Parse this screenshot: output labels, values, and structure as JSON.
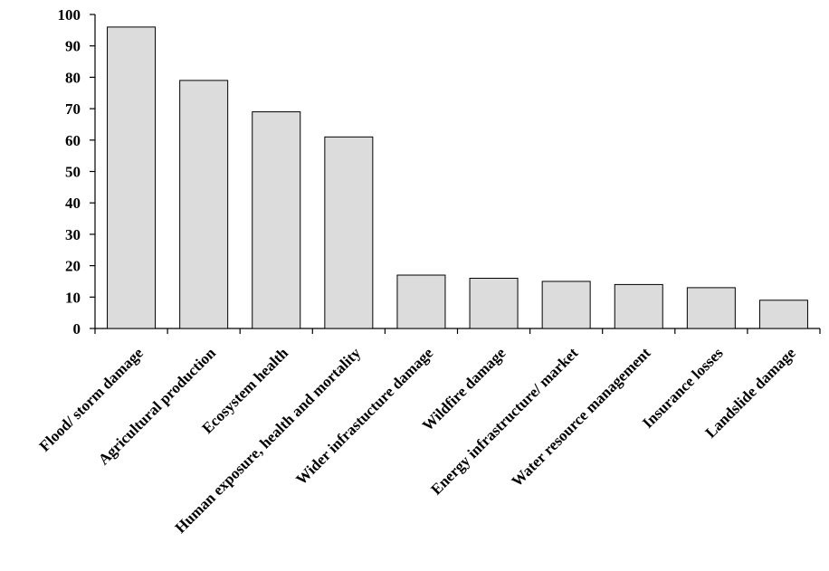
{
  "chart_data": {
    "type": "bar",
    "categories": [
      "Flood/ storm damage",
      "Agricultural production",
      "Ecosystem health",
      "Human exposure, health and mortality",
      "Wider infrastucture damage",
      "Wildfire damage",
      "Energy infrastructure/ market",
      "Water resource management",
      "Insurance losses",
      "Landslide damage"
    ],
    "values": [
      96,
      79,
      69,
      61,
      17,
      16,
      15,
      14,
      13,
      9
    ],
    "title": "",
    "xlabel": "",
    "ylabel": "",
    "ylim": [
      0,
      100
    ],
    "yticks": [
      "0",
      "10",
      "20",
      "30",
      "40",
      "50",
      "60",
      "70",
      "80",
      "90",
      "100"
    ],
    "grid": false,
    "bar_color": "#dcdcdc",
    "edge_color": "#000000"
  }
}
